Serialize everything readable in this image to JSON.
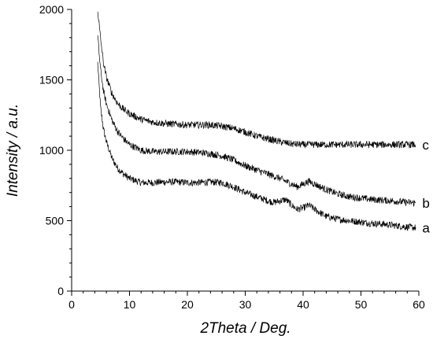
{
  "chart_data": {
    "type": "line",
    "xlabel": "2Theta / Deg.",
    "ylabel": "Intensity / a.u.",
    "xlim": [
      0,
      60
    ],
    "ylim": [
      0,
      2000
    ],
    "xticks": [
      0,
      10,
      20,
      30,
      40,
      50,
      60
    ],
    "yticks": [
      0,
      500,
      1000,
      1500,
      2000
    ],
    "grid": false,
    "line_color": "#000000",
    "series": [
      {
        "name": "a",
        "x": [
          4.5,
          5,
          5.5,
          6,
          7,
          8,
          9,
          10,
          12,
          14,
          16,
          18,
          20,
          22,
          24,
          26,
          28,
          30,
          32,
          34,
          35,
          36,
          37,
          38,
          39,
          40,
          41,
          42,
          44,
          46,
          48,
          50,
          52,
          54,
          56,
          58,
          59.5
        ],
        "values": [
          1620,
          1300,
          1150,
          1060,
          940,
          870,
          830,
          800,
          770,
          770,
          775,
          775,
          770,
          770,
          775,
          770,
          740,
          700,
          670,
          640,
          630,
          640,
          650,
          610,
          580,
          590,
          610,
          580,
          530,
          510,
          500,
          490,
          480,
          475,
          465,
          455,
          450
        ]
      },
      {
        "name": "b",
        "x": [
          4.5,
          5,
          5.5,
          6,
          7,
          8,
          9,
          10,
          12,
          14,
          16,
          18,
          20,
          22,
          24,
          26,
          28,
          30,
          32,
          34,
          36,
          37,
          38,
          39,
          40,
          41,
          42,
          44,
          46,
          48,
          50,
          52,
          54,
          56,
          58,
          59.5
        ],
        "values": [
          1810,
          1570,
          1420,
          1330,
          1210,
          1130,
          1080,
          1040,
          1000,
          990,
          990,
          990,
          990,
          985,
          975,
          960,
          930,
          890,
          860,
          830,
          800,
          780,
          760,
          740,
          760,
          780,
          760,
          720,
          690,
          670,
          660,
          650,
          645,
          638,
          630,
          625
        ]
      },
      {
        "name": "c",
        "x": [
          4.5,
          5,
          5.5,
          6,
          7,
          8,
          9,
          10,
          12,
          14,
          16,
          18,
          20,
          22,
          24,
          26,
          28,
          30,
          32,
          34,
          36,
          38,
          40,
          42,
          44,
          46,
          48,
          50,
          52,
          54,
          56,
          58,
          59.5
        ],
        "values": [
          2000,
          1790,
          1620,
          1520,
          1400,
          1330,
          1290,
          1260,
          1220,
          1200,
          1190,
          1185,
          1180,
          1180,
          1180,
          1170,
          1155,
          1130,
          1100,
          1080,
          1060,
          1045,
          1040,
          1040,
          1040,
          1040,
          1040,
          1040,
          1040,
          1040,
          1040,
          1040,
          1040
        ]
      }
    ]
  }
}
